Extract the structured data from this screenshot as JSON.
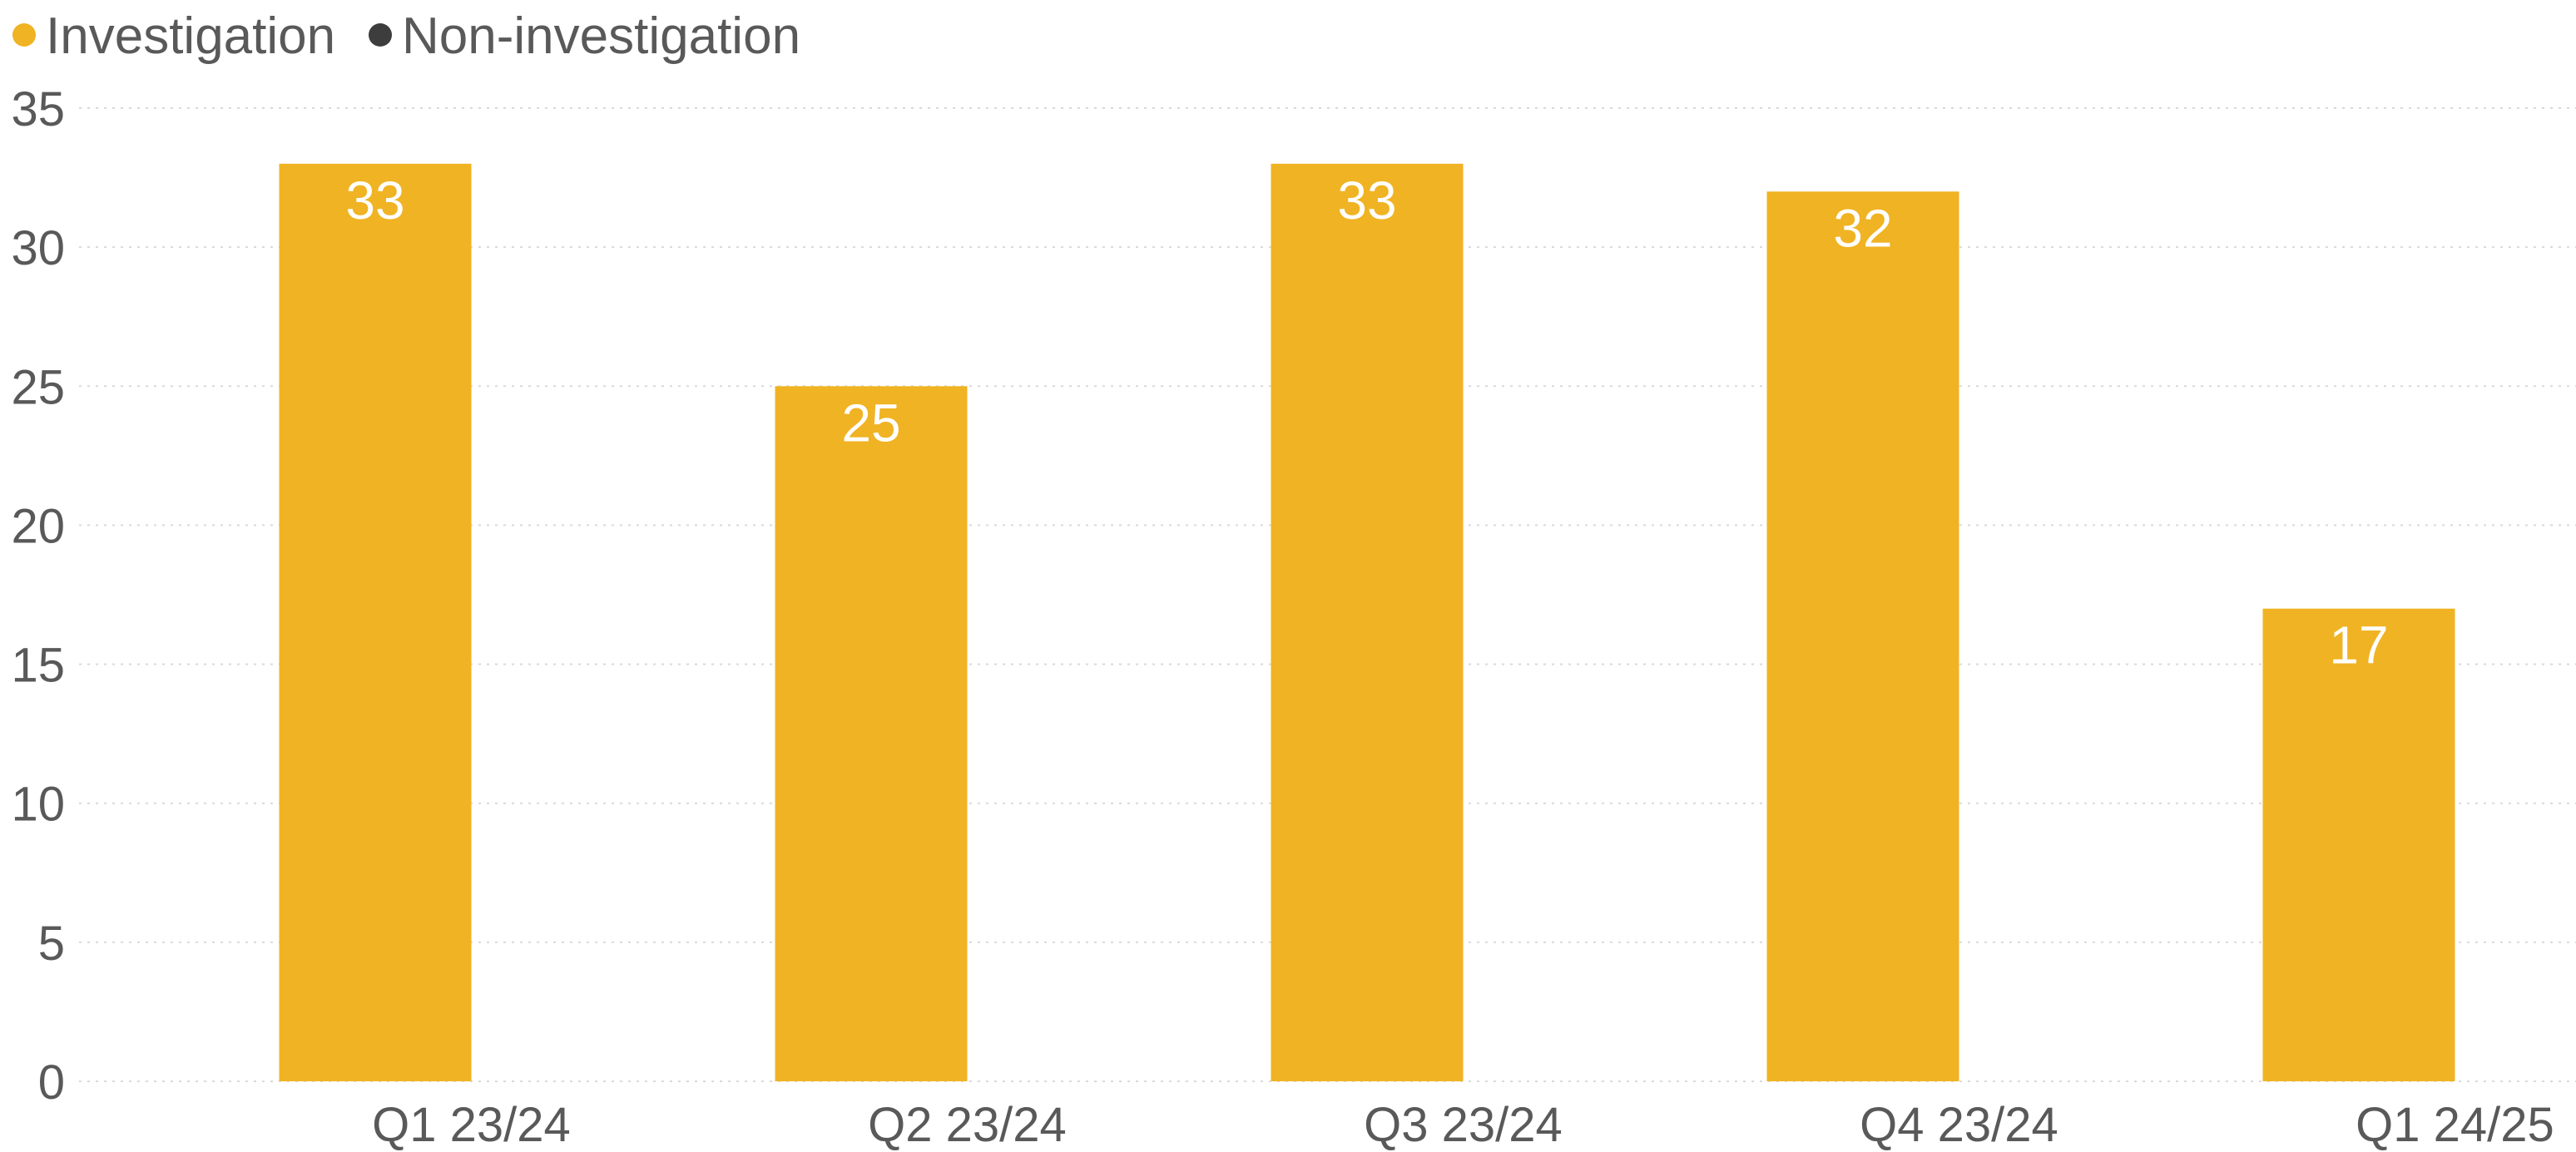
{
  "chart_data": {
    "type": "bar",
    "categories": [
      "Q1 23/24",
      "Q2 23/24",
      "Q3 23/24",
      "Q4 23/24",
      "Q1 24/25"
    ],
    "series": [
      {
        "name": "Investigation",
        "color": "#F0B323",
        "values": [
          33,
          25,
          33,
          32,
          17
        ]
      },
      {
        "name": "Non-investigation",
        "color": "#3D3D3D",
        "values": [
          0,
          0,
          0,
          0,
          0
        ]
      }
    ],
    "title": "",
    "xlabel": "",
    "ylabel": "",
    "ylim": [
      0,
      35
    ],
    "yticks": [
      0,
      5,
      10,
      15,
      20,
      25,
      30,
      35
    ],
    "grid": true,
    "legend_position": "top-left",
    "data_labels": true
  }
}
